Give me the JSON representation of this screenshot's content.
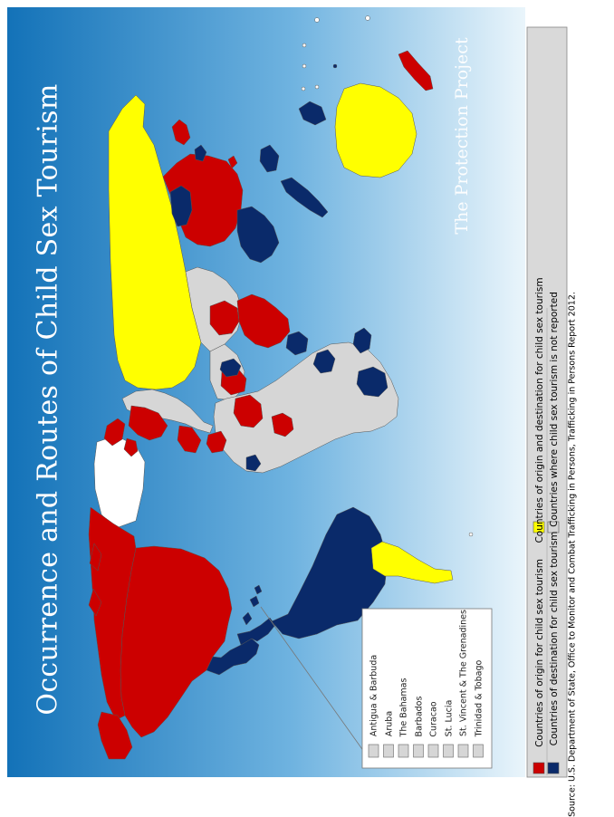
{
  "title": "Occurrence and Routes of Child Sex Tourism",
  "logo": "The Protection Project",
  "source": "Source: U.S. Department of State, Office to Monitor and Combat Trafficking in Persons, Trafficking in Persons Report 2012.",
  "colors": {
    "origin": "#cc0000",
    "destination": "#0a2a6a",
    "both": "#ffff00",
    "not_reported": "#d6d6d6",
    "no_data": "#ffffff",
    "ocean_dark": "#1372b8",
    "ocean_light": "#eaf5fb"
  },
  "legend": {
    "items": [
      {
        "label": "Countries of origin for child sex tourism",
        "category": "origin"
      },
      {
        "label": "Countries of destination for child sex tourism",
        "category": "destination"
      },
      {
        "label": "Countries of origin and destination for child sex tourism",
        "category": "both"
      },
      {
        "label": "Countries where child sex tourism is not reported",
        "category": "not_reported"
      }
    ]
  },
  "inset": {
    "items": [
      {
        "label": "Antigua & Barbuda",
        "category": "not_reported"
      },
      {
        "label": "Aruba",
        "category": "not_reported"
      },
      {
        "label": "The Bahamas",
        "category": "not_reported"
      },
      {
        "label": "Barbados",
        "category": "not_reported"
      },
      {
        "label": "Curacao",
        "category": "not_reported"
      },
      {
        "label": "St. Lucia",
        "category": "not_reported"
      },
      {
        "label": "St. Vincent & The Grenadines",
        "category": "not_reported"
      },
      {
        "label": "Trinidad & Tobago",
        "category": "not_reported"
      }
    ]
  }
}
